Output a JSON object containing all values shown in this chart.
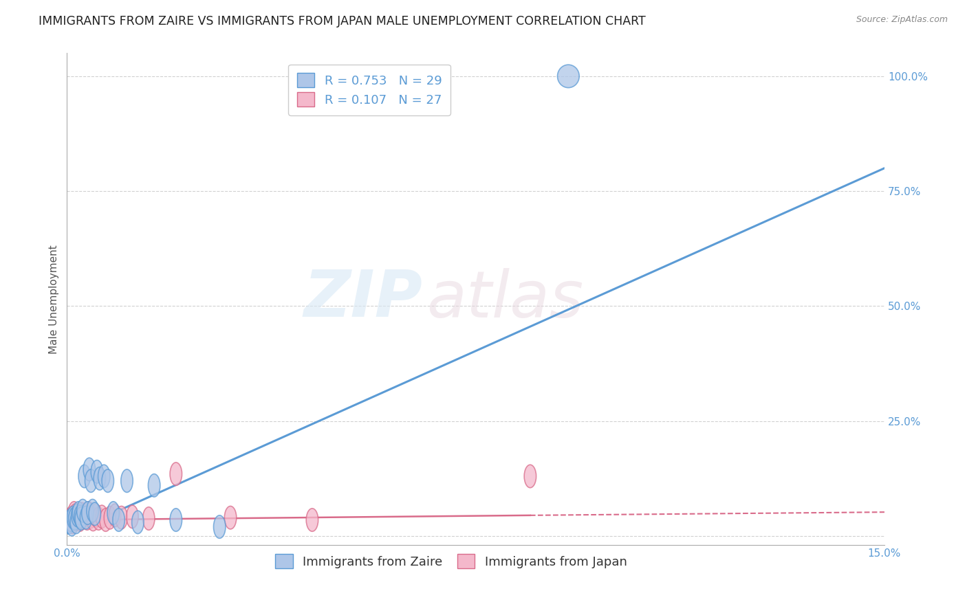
{
  "title": "IMMIGRANTS FROM ZAIRE VS IMMIGRANTS FROM JAPAN MALE UNEMPLOYMENT CORRELATION CHART",
  "source": "Source: ZipAtlas.com",
  "xlim": [
    0.0,
    15.0
  ],
  "ylim": [
    -2.0,
    105.0
  ],
  "zaire_r": "0.753",
  "zaire_n": "29",
  "japan_r": "0.107",
  "japan_n": "27",
  "zaire_color": "#aec6e8",
  "zaire_edge_color": "#5b9bd5",
  "japan_color": "#f4b8cb",
  "japan_edge_color": "#d96b8a",
  "zaire_x": [
    0.04,
    0.07,
    0.09,
    0.11,
    0.14,
    0.17,
    0.19,
    0.21,
    0.24,
    0.26,
    0.29,
    0.32,
    0.35,
    0.38,
    0.41,
    0.44,
    0.47,
    0.51,
    0.55,
    0.6,
    0.68,
    0.75,
    0.85,
    0.95,
    1.1,
    1.3,
    1.6,
    2.0,
    2.8
  ],
  "zaire_y": [
    3.0,
    3.5,
    2.5,
    4.0,
    3.8,
    3.0,
    4.5,
    5.0,
    4.2,
    3.8,
    5.5,
    13.0,
    4.0,
    5.0,
    14.5,
    12.0,
    5.5,
    4.8,
    14.0,
    12.5,
    13.0,
    12.0,
    5.0,
    3.5,
    12.0,
    3.0,
    11.0,
    3.5,
    2.0
  ],
  "japan_x": [
    0.05,
    0.08,
    0.1,
    0.13,
    0.15,
    0.18,
    0.21,
    0.24,
    0.27,
    0.3,
    0.34,
    0.37,
    0.4,
    0.44,
    0.48,
    0.53,
    0.58,
    0.64,
    0.71,
    0.79,
    0.88,
    1.0,
    1.2,
    1.5,
    2.0,
    3.0,
    4.5,
    8.5
  ],
  "japan_y": [
    3.5,
    4.0,
    3.0,
    5.0,
    4.5,
    3.8,
    4.2,
    3.5,
    4.8,
    4.0,
    4.5,
    3.8,
    5.0,
    4.2,
    3.6,
    4.5,
    3.8,
    4.2,
    3.5,
    4.0,
    4.5,
    4.0,
    4.2,
    3.8,
    13.5,
    4.0,
    3.5,
    13.0
  ],
  "zaire_outlier_x": [
    9.2
  ],
  "zaire_outlier_y": [
    100.0
  ],
  "zaire_trend_x0": 0.0,
  "zaire_trend_y0": 0.5,
  "zaire_trend_x1": 15.0,
  "zaire_trend_y1": 80.0,
  "japan_solid_x0": 0.0,
  "japan_solid_y0": 3.5,
  "japan_solid_x1": 8.5,
  "japan_solid_y1": 4.5,
  "japan_dash_x0": 8.5,
  "japan_dash_y0": 4.5,
  "japan_dash_x1": 15.0,
  "japan_dash_y1": 5.2,
  "yticks": [
    0,
    25,
    50,
    75,
    100
  ],
  "ytick_labels": [
    "",
    "25.0%",
    "50.0%",
    "75.0%",
    "100.0%"
  ],
  "xtick_labels": [
    "0.0%",
    "15.0%"
  ],
  "watermark_zip": "ZIP",
  "watermark_atlas": "atlas",
  "background_color": "#ffffff",
  "grid_color": "#cccccc",
  "title_color": "#222222",
  "ylabel_color": "#555555",
  "tick_color": "#5b9bd5",
  "ylabel": "Male Unemployment",
  "title_fontsize": 12.5,
  "axis_fontsize": 11,
  "legend_fontsize": 13
}
